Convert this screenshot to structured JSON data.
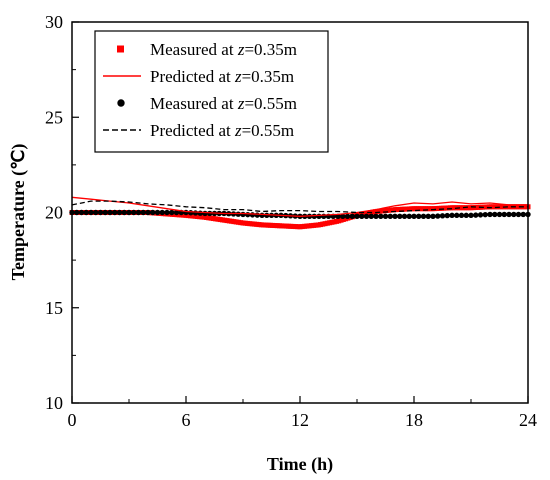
{
  "chart_data": {
    "type": "line",
    "xlabel": "Time (h)",
    "ylabel": "Temperature (℃)",
    "xlim": [
      0,
      24
    ],
    "ylim": [
      10,
      30
    ],
    "xticks": [
      0,
      6,
      12,
      18,
      24
    ],
    "yticks": [
      10,
      15,
      20,
      25,
      30
    ],
    "grid": false,
    "legend": {
      "placement": "top-left",
      "entries": [
        {
          "prefix": "Measured at ",
          "var": "z",
          "suffix": "=0.35m"
        },
        {
          "prefix": "Predicted at ",
          "var": "z",
          "suffix": "=0.35m"
        },
        {
          "prefix": "Measured at ",
          "var": "z",
          "suffix": "=0.55m"
        },
        {
          "prefix": "Predicted at ",
          "var": "z",
          "suffix": "=0.55m"
        }
      ]
    },
    "series": [
      {
        "name": "Measured at z=0.35m",
        "style": "square-markers",
        "color": "#ff0000",
        "x": [
          0,
          2,
          4,
          6,
          7,
          8,
          9,
          10,
          11,
          12,
          13,
          14,
          15,
          16,
          17,
          18,
          19,
          20,
          21,
          22,
          23,
          24
        ],
        "y": [
          20.0,
          20.0,
          20.0,
          19.85,
          19.75,
          19.6,
          19.45,
          19.35,
          19.3,
          19.25,
          19.35,
          19.55,
          19.85,
          20.05,
          20.15,
          20.2,
          20.2,
          20.25,
          20.25,
          20.3,
          20.3,
          20.3
        ]
      },
      {
        "name": "Predicted at z=0.35m",
        "style": "solid",
        "color": "#ff0000",
        "x": [
          0,
          1,
          2,
          3,
          4,
          5,
          6,
          7,
          8,
          9,
          10,
          11,
          12,
          13,
          14,
          15,
          16,
          17,
          18,
          19,
          20,
          21,
          22,
          23,
          24
        ],
        "y": [
          20.8,
          20.7,
          20.6,
          20.5,
          20.35,
          20.2,
          20.05,
          20.0,
          19.95,
          19.95,
          19.9,
          19.85,
          19.8,
          19.85,
          19.9,
          20.0,
          20.15,
          20.35,
          20.5,
          20.45,
          20.55,
          20.45,
          20.5,
          20.4,
          20.4
        ]
      },
      {
        "name": "Measured at z=0.55m",
        "style": "circle-markers",
        "color": "#000000",
        "x": [
          0,
          1,
          2,
          3,
          4,
          5,
          6,
          7,
          8,
          9,
          10,
          11,
          12,
          13,
          14,
          15,
          16,
          17,
          18,
          19,
          20,
          21,
          22,
          23,
          24
        ],
        "y": [
          20.0,
          20.0,
          20.0,
          20.0,
          20.0,
          20.0,
          20.0,
          19.95,
          19.95,
          19.9,
          19.85,
          19.85,
          19.8,
          19.8,
          19.8,
          19.8,
          19.8,
          19.8,
          19.8,
          19.8,
          19.85,
          19.85,
          19.9,
          19.9,
          19.9
        ]
      },
      {
        "name": "Predicted at z=0.55m",
        "style": "dashed",
        "color": "#000000",
        "x": [
          0,
          1,
          2,
          3,
          4,
          5,
          6,
          7,
          8,
          9,
          10,
          11,
          12,
          13,
          14,
          15,
          16,
          17,
          18,
          19,
          20,
          21,
          22,
          23,
          24
        ],
        "y": [
          20.4,
          20.6,
          20.6,
          20.55,
          20.45,
          20.4,
          20.3,
          20.25,
          20.15,
          20.15,
          20.05,
          20.1,
          20.1,
          20.05,
          20.05,
          20.0,
          20.0,
          20.05,
          20.1,
          20.15,
          20.2,
          20.3,
          20.25,
          20.3,
          20.3
        ]
      }
    ]
  }
}
